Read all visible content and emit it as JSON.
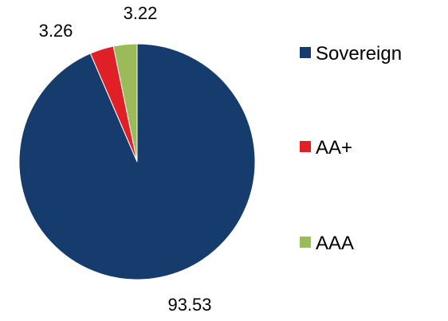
{
  "chart_data": {
    "type": "pie",
    "title": "",
    "legend_position": "right",
    "start_angle_deg": 0,
    "direction": "clockwise",
    "slices": [
      {
        "label": "Sovereign",
        "value": 93.53,
        "value_label": "93.53",
        "color": "#163c6e"
      },
      {
        "label": "AA+",
        "value": 3.26,
        "value_label": "3.26",
        "color": "#e02027"
      },
      {
        "label": "AAA",
        "value": 3.22,
        "value_label": "3.22",
        "color": "#9bbb59"
      }
    ]
  }
}
